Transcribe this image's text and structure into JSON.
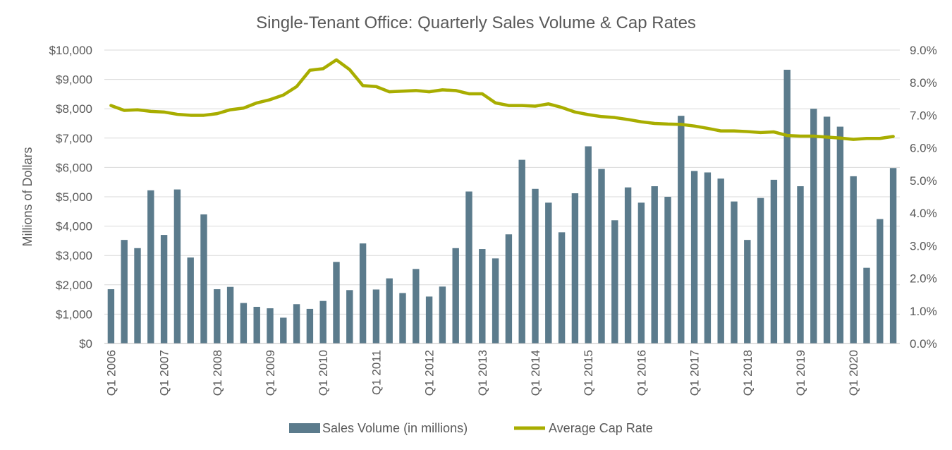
{
  "chart_data": {
    "type": "bar",
    "title": "Single-Tenant Office: Quarterly Sales Volume & Cap Rates",
    "ylabel": "Millions of Dollars",
    "xlabel": "",
    "ylim": [
      0,
      10000
    ],
    "y2lim": [
      0.0,
      9.0
    ],
    "y_ticks": [
      "$0",
      "$1,000",
      "$2,000",
      "$3,000",
      "$4,000",
      "$5,000",
      "$6,000",
      "$7,000",
      "$8,000",
      "$9,000",
      "$10,000"
    ],
    "y2_ticks": [
      "0.0%",
      "1.0%",
      "2.0%",
      "3.0%",
      "4.0%",
      "5.0%",
      "6.0%",
      "7.0%",
      "8.0%",
      "9.0%"
    ],
    "x_tick_labels": [
      "Q1 2006",
      "Q1 2007",
      "Q1 2008",
      "Q1 2009",
      "Q1 2010",
      "Q1 2011",
      "Q1 2012",
      "Q1 2013",
      "Q1 2014",
      "Q1 2015",
      "Q1 2016",
      "Q1 2017",
      "Q1 2018",
      "Q1 2019",
      "Q1 2020"
    ],
    "grid": true,
    "legend_position": "bottom-center",
    "colors": {
      "bar": "#5b7b8c",
      "line": "#a8ad00",
      "grid": "#d9d9d9",
      "text": "#595959"
    },
    "series": [
      {
        "name": "Sales Volume (in millions)",
        "type": "bar",
        "axis": "left",
        "values": [
          1850,
          3530,
          3250,
          5220,
          3700,
          5250,
          2930,
          4400,
          1850,
          1930,
          1380,
          1250,
          1200,
          880,
          1340,
          1180,
          1450,
          2780,
          1820,
          3410,
          1840,
          2220,
          1720,
          2540,
          1600,
          1940,
          3250,
          5180,
          3220,
          2900,
          3720,
          6260,
          5270,
          4800,
          3790,
          5120,
          6720,
          5950,
          4200,
          5320,
          4800,
          5360,
          5000,
          7760,
          5880,
          5830,
          5620,
          4840,
          3530,
          4960,
          5580,
          9330,
          5360,
          8000,
          7730,
          7390,
          5700,
          2580,
          4240,
          5980
        ]
      },
      {
        "name": "Average Cap Rate",
        "type": "line",
        "axis": "right",
        "values": [
          7.3,
          7.15,
          7.17,
          7.12,
          7.1,
          7.03,
          7.0,
          7.0,
          7.05,
          7.17,
          7.22,
          7.38,
          7.48,
          7.62,
          7.88,
          8.38,
          8.43,
          8.7,
          8.4,
          7.91,
          7.88,
          7.72,
          7.74,
          7.76,
          7.72,
          7.78,
          7.76,
          7.66,
          7.66,
          7.38,
          7.3,
          7.3,
          7.28,
          7.35,
          7.24,
          7.1,
          7.02,
          6.96,
          6.93,
          6.87,
          6.8,
          6.75,
          6.73,
          6.72,
          6.67,
          6.6,
          6.52,
          6.52,
          6.5,
          6.47,
          6.49,
          6.38,
          6.36,
          6.36,
          6.33,
          6.3,
          6.26,
          6.29,
          6.29,
          6.35
        ]
      }
    ]
  }
}
